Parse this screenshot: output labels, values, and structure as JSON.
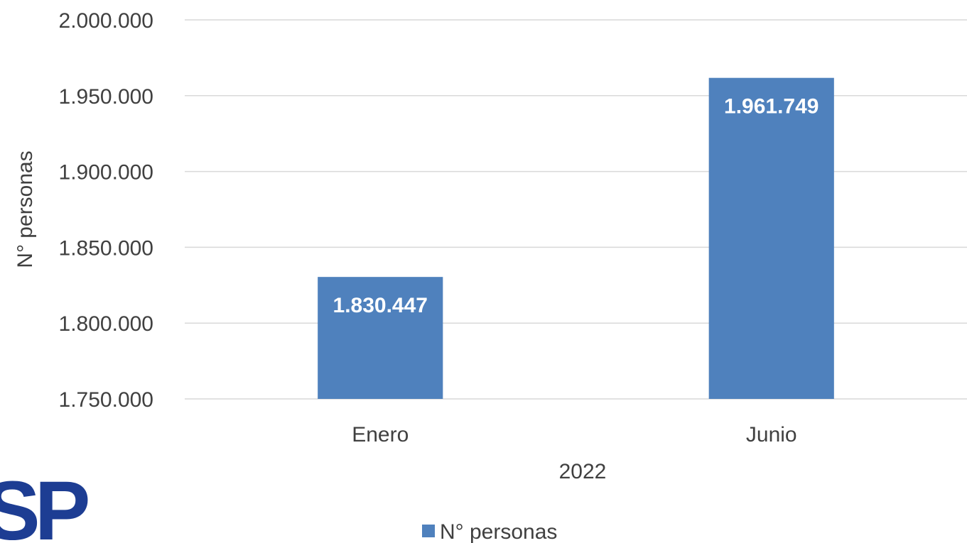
{
  "chart_data": {
    "type": "bar",
    "categories": [
      "Enero",
      "Junio"
    ],
    "series": [
      {
        "name": "N° personas",
        "values": [
          1830447,
          1961749
        ],
        "labels": [
          "1.830.447",
          "1.961.749"
        ]
      }
    ],
    "xlabel": "2022",
    "ylabel": "N° personas",
    "ylim": [
      1750000,
      2000000
    ],
    "yticks": [
      1750000,
      1800000,
      1850000,
      1900000,
      1950000,
      2000000
    ],
    "ytick_labels": [
      "1.750.000",
      "1.800.000",
      "1.850.000",
      "1.900.000",
      "1.950.000",
      "2.000.000"
    ],
    "grid": true,
    "legend_position": "bottom",
    "colors": {
      "bar": "#4f81bd",
      "grid": "#d9d9d9",
      "text": "#404040"
    }
  },
  "logo": {
    "text": "SP",
    "color": "#1d3d93"
  }
}
